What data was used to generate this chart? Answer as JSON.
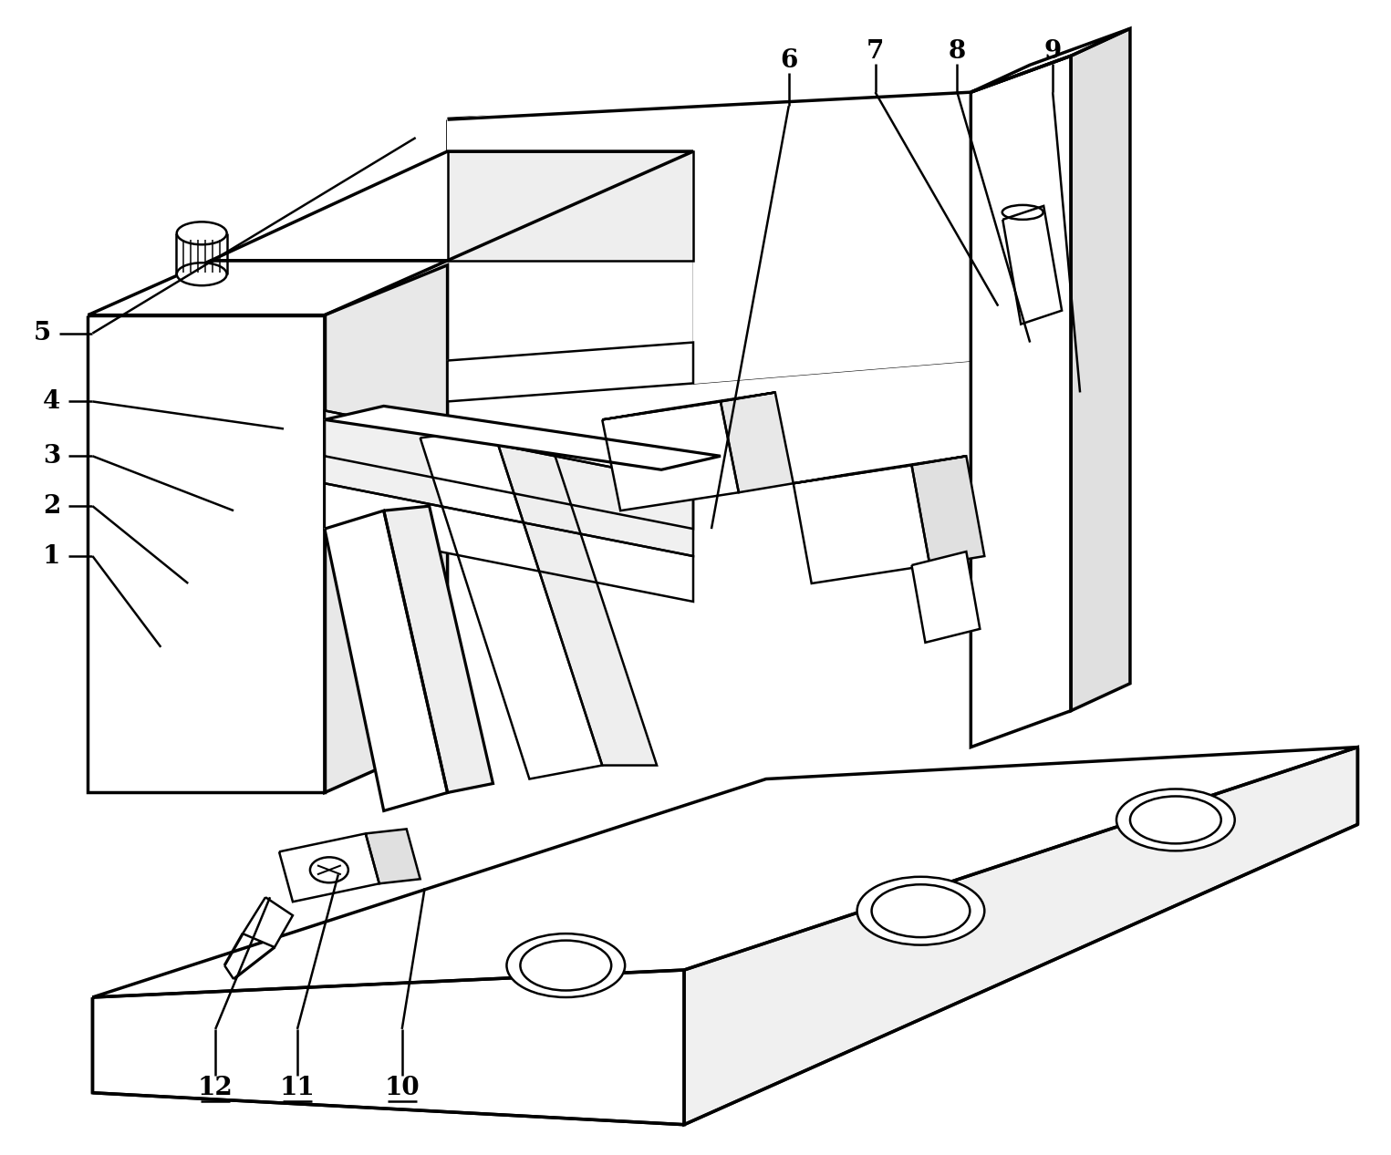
{
  "bg_color": "#ffffff",
  "line_color": "#000000",
  "lw": 1.8,
  "lw_thick": 2.5,
  "fig_width": 15.25,
  "fig_height": 12.67,
  "label_fontsize": 20
}
